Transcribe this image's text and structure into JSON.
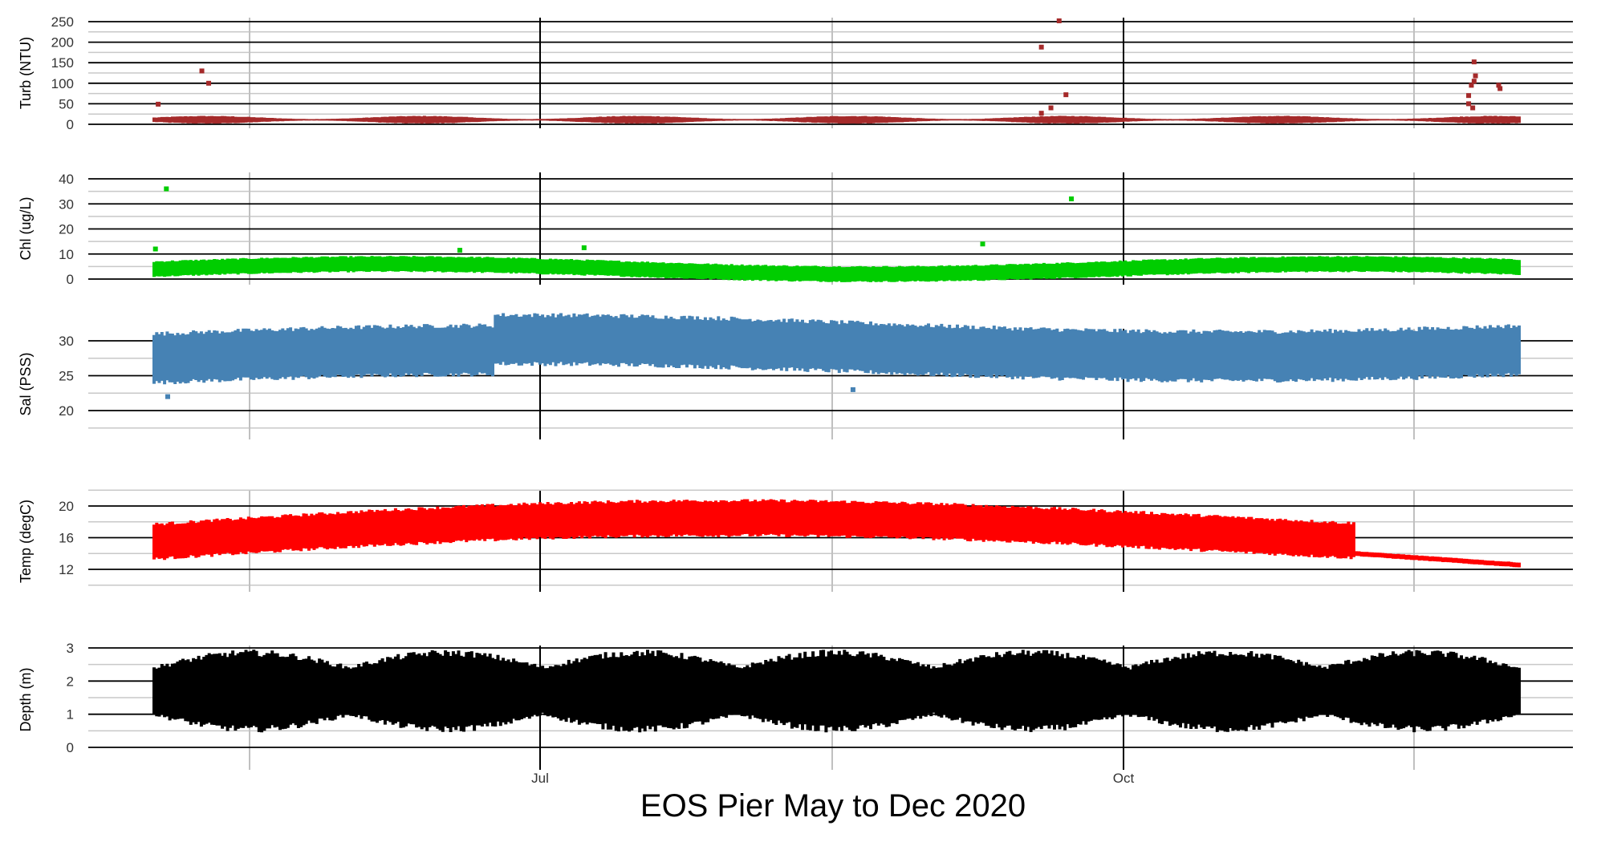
{
  "chart_data": {
    "type": "scatter",
    "title": "EOS Pier May to Dec 2020",
    "x_ticks": [
      "Jul",
      "Oct"
    ],
    "x_range": [
      "2020-05-08",
      "2020-12-20"
    ],
    "panels": [
      {
        "ylabel": "Turb (NTU)",
        "color": "#a52a2a",
        "ylim": [
          0,
          260
        ],
        "yticks": [
          0,
          50,
          100,
          150,
          200,
          250
        ],
        "band": [
          2,
          20,
          11
        ],
        "outliers": [
          {
            "t": 0.003,
            "v": 49
          },
          {
            "t": 0.035,
            "v": 130
          },
          {
            "t": 0.04,
            "v": 100
          },
          {
            "t": 0.65,
            "v": 188
          },
          {
            "t": 0.663,
            "v": 252
          },
          {
            "t": 0.668,
            "v": 72
          },
          {
            "t": 0.657,
            "v": 40
          },
          {
            "t": 0.65,
            "v": 27
          },
          {
            "t": 0.967,
            "v": 152
          },
          {
            "t": 0.968,
            "v": 118
          },
          {
            "t": 0.967,
            "v": 105
          },
          {
            "t": 0.965,
            "v": 95
          },
          {
            "t": 0.963,
            "v": 70
          },
          {
            "t": 0.963,
            "v": 50
          },
          {
            "t": 0.966,
            "v": 40
          },
          {
            "t": 0.985,
            "v": 95
          },
          {
            "t": 0.986,
            "v": 87
          }
        ]
      },
      {
        "ylabel": "Chl (ug/L)",
        "color": "#00cd00",
        "ylim": [
          0,
          42
        ],
        "yticks": [
          0,
          10,
          20,
          30,
          40
        ],
        "band": [
          1,
          7,
          4
        ],
        "outliers": [
          {
            "t": 0.001,
            "v": 12
          },
          {
            "t": 0.009,
            "v": 36
          },
          {
            "t": 0.672,
            "v": 32
          },
          {
            "t": 0.315,
            "v": 12.5
          },
          {
            "t": 0.224,
            "v": 11.5
          },
          {
            "t": 0.607,
            "v": 14
          }
        ]
      },
      {
        "ylabel": "Sal (PSS)",
        "color": "#4682b4",
        "ylim": [
          15.5,
          34
        ],
        "yticks": [
          20,
          25,
          30
        ],
        "band": [
          25,
          32,
          29
        ],
        "outliers": [
          {
            "t": 0.512,
            "v": 23
          },
          {
            "t": 0.01,
            "v": 22
          }
        ]
      },
      {
        "ylabel": "Temp (degC)",
        "color": "#ff0000",
        "ylim": [
          10,
          22.5
        ],
        "yticks": [
          12,
          16,
          20
        ],
        "band": [
          14,
          19,
          16.5
        ],
        "outliers": []
      },
      {
        "ylabel": "Depth (m)",
        "color": "#000000",
        "ylim": [
          0,
          3.1
        ],
        "yticks": [
          0,
          1,
          2,
          3
        ],
        "band": [
          0.5,
          2.8,
          1.7
        ],
        "outliers": []
      }
    ]
  }
}
